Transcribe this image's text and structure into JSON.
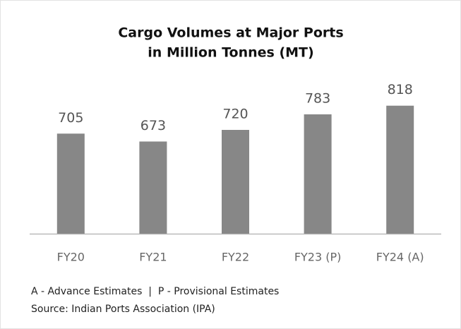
{
  "chart_data": {
    "type": "bar",
    "title": [
      "Cargo Volumes at Major Ports",
      "in Million Tonnes (MT)"
    ],
    "categories": [
      "FY20",
      "FY21",
      "FY22",
      "FY23 (P)",
      "FY24 (A)"
    ],
    "values": [
      705,
      673,
      720,
      783,
      818
    ],
    "color": "#878787",
    "ylim": [
      300,
      900
    ],
    "notes": [
      "A - Advance Estimates  |  P - Provisional Estimates",
      "Source: Indian Ports Association (IPA)"
    ]
  }
}
